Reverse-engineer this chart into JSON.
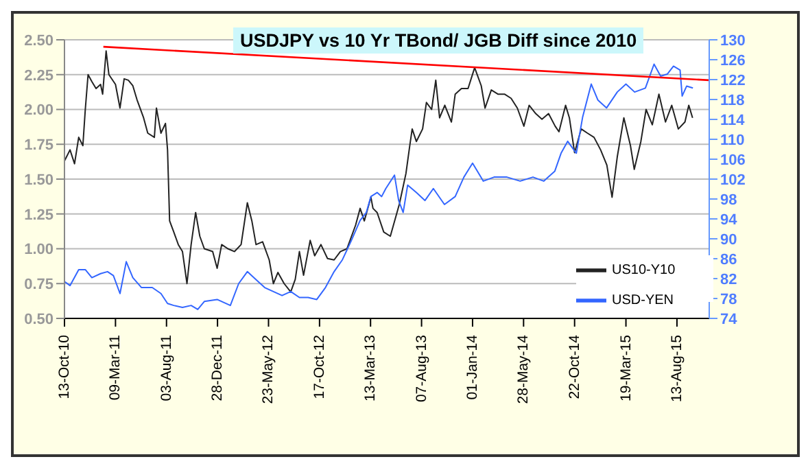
{
  "chart_data": {
    "type": "line",
    "title": "USDJPY vs 10 Yr TBond/ JGB Diff since 2010",
    "xlim": [
      "2010-10-13",
      "2015-11-14"
    ],
    "xticks": [
      {
        "value": "2010-10-13",
        "label": "13-Oct-10"
      },
      {
        "value": "2011-03-09",
        "label": "09-Mar-11"
      },
      {
        "value": "2011-08-03",
        "label": "03-Aug-11"
      },
      {
        "value": "2011-12-28",
        "label": "28-Dec-11"
      },
      {
        "value": "2012-05-23",
        "label": "23-May-12"
      },
      {
        "value": "2012-10-17",
        "label": "17-Oct-12"
      },
      {
        "value": "2013-03-13",
        "label": "13-Mar-13"
      },
      {
        "value": "2013-08-07",
        "label": "07-Aug-13"
      },
      {
        "value": "2014-01-01",
        "label": "01-Jan-14"
      },
      {
        "value": "2014-05-28",
        "label": "28-May-14"
      },
      {
        "value": "2014-10-22",
        "label": "22-Oct-14"
      },
      {
        "value": "2015-03-19",
        "label": "19-Mar-15"
      },
      {
        "value": "2015-08-13",
        "label": "13-Aug-15"
      }
    ],
    "ylim": [
      0.5,
      2.5
    ],
    "yticks": [
      {
        "value": 0.5,
        "label": "0.50"
      },
      {
        "value": 0.75,
        "label": "0.75"
      },
      {
        "value": 1,
        "label": "1.00"
      },
      {
        "value": 1.25,
        "label": "1.25"
      },
      {
        "value": 1.5,
        "label": "1.50"
      },
      {
        "value": 1.75,
        "label": "1.75"
      },
      {
        "value": 2,
        "label": "2.00"
      },
      {
        "value": 2.25,
        "label": "2.25"
      },
      {
        "value": 2.5,
        "label": "2.50"
      }
    ],
    "y2lim": [
      74,
      130
    ],
    "y2ticks": [
      74,
      78,
      82,
      86,
      90,
      94,
      98,
      102,
      106,
      110,
      114,
      118,
      122,
      126,
      130
    ],
    "grid": "y",
    "legend": "bottom right",
    "marker": "none",
    "line_style": "solid",
    "series": [
      {
        "name": "US10-Y10",
        "color": "#222222",
        "x": [
          "2010-10-13",
          "2010-10-29",
          "2010-11-11",
          "2010-11-23",
          "2010-12-05",
          "2010-12-12",
          "2010-12-20",
          "2010-12-31",
          "2011-01-12",
          "2011-01-25",
          "2011-01-31",
          "2011-02-10",
          "2011-02-18",
          "2011-03-09",
          "2011-03-22",
          "2011-04-03",
          "2011-04-15",
          "2011-04-28",
          "2011-05-10",
          "2011-05-29",
          "2011-06-10",
          "2011-06-29",
          "2011-07-05",
          "2011-07-18",
          "2011-07-31",
          "2011-08-06",
          "2011-08-12",
          "2011-08-24",
          "2011-09-06",
          "2011-09-18",
          "2011-10-01",
          "2011-10-13",
          "2011-10-26",
          "2011-11-07",
          "2011-11-20",
          "2011-12-14",
          "2011-12-27",
          "2012-01-09",
          "2012-01-27",
          "2012-02-15",
          "2012-03-05",
          "2012-03-23",
          "2012-04-05",
          "2012-04-17",
          "2012-05-06",
          "2012-05-25",
          "2012-06-06",
          "2012-06-19",
          "2012-07-07",
          "2012-07-26",
          "2012-08-08",
          "2012-08-20",
          "2012-09-01",
          "2012-09-20",
          "2012-10-03",
          "2012-10-21",
          "2012-11-09",
          "2012-11-28",
          "2012-12-16",
          "2013-01-04",
          "2013-01-29",
          "2013-02-11",
          "2013-02-23",
          "2013-03-14",
          "2013-03-20",
          "2013-04-01",
          "2013-04-20",
          "2013-05-09",
          "2013-06-04",
          "2013-06-23",
          "2013-07-04",
          "2013-07-11",
          "2013-07-23",
          "2013-08-10",
          "2013-08-21",
          "2013-09-05",
          "2013-09-17",
          "2013-09-28",
          "2013-10-13",
          "2013-11-01",
          "2013-11-12",
          "2013-11-30",
          "2013-12-19",
          "2014-01-07",
          "2014-01-26",
          "2014-02-06",
          "2014-02-24",
          "2014-03-15",
          "2014-04-03",
          "2014-04-22",
          "2014-05-10",
          "2014-05-29",
          "2014-06-13",
          "2014-07-02",
          "2014-07-20",
          "2014-08-08",
          "2014-08-27",
          "2014-09-07",
          "2014-09-26",
          "2014-10-07",
          "2014-10-22",
          "2014-11-10",
          "2014-11-28",
          "2014-12-17",
          "2015-01-05",
          "2015-01-23",
          "2015-02-07",
          "2015-02-22",
          "2015-03-13",
          "2015-04-01",
          "2015-04-12",
          "2015-05-01",
          "2015-05-16",
          "2015-06-03",
          "2015-06-22",
          "2015-07-11",
          "2015-07-29",
          "2015-08-17",
          "2015-09-05",
          "2015-09-16",
          "2015-09-27"
        ],
        "values": [
          1.63,
          1.71,
          1.61,
          1.8,
          1.74,
          2.0,
          2.25,
          2.2,
          2.15,
          2.18,
          2.11,
          2.42,
          2.25,
          2.18,
          2.01,
          2.22,
          2.21,
          2.17,
          2.07,
          1.94,
          1.83,
          1.8,
          2.01,
          1.83,
          1.9,
          1.71,
          1.2,
          1.12,
          1.03,
          0.98,
          0.75,
          1.03,
          1.26,
          1.09,
          1.0,
          0.98,
          0.86,
          1.03,
          1.0,
          0.98,
          1.03,
          1.33,
          1.2,
          1.03,
          1.05,
          0.92,
          0.75,
          0.83,
          0.75,
          0.69,
          0.78,
          0.98,
          0.81,
          1.06,
          0.95,
          1.03,
          0.93,
          0.92,
          0.98,
          1.0,
          1.17,
          1.29,
          1.2,
          1.37,
          1.29,
          1.26,
          1.12,
          1.09,
          1.32,
          1.54,
          1.74,
          1.86,
          1.77,
          1.86,
          2.05,
          2.0,
          2.21,
          1.94,
          2.03,
          1.91,
          2.11,
          2.15,
          2.15,
          2.3,
          2.17,
          2.01,
          2.14,
          2.11,
          2.11,
          2.08,
          2.01,
          1.88,
          2.03,
          1.97,
          1.93,
          1.97,
          1.88,
          1.84,
          2.03,
          1.94,
          1.69,
          1.86,
          1.83,
          1.8,
          1.71,
          1.6,
          1.37,
          1.66,
          1.94,
          1.74,
          1.57,
          1.77,
          2.0,
          1.89,
          2.11,
          1.91,
          2.03,
          1.86,
          1.91,
          2.03,
          1.94
        ]
      },
      {
        "name": "USD-YEN",
        "color": "#3366ff",
        "axis": "y2",
        "x": [
          "2010-10-13",
          "2010-10-29",
          "2010-11-23",
          "2010-12-12",
          "2010-12-31",
          "2011-01-25",
          "2011-02-14",
          "2011-03-03",
          "2011-03-22",
          "2011-04-09",
          "2011-04-28",
          "2011-05-23",
          "2011-06-23",
          "2011-07-18",
          "2011-08-06",
          "2011-08-24",
          "2011-09-18",
          "2011-10-13",
          "2011-11-01",
          "2011-11-20",
          "2011-12-27",
          "2012-02-03",
          "2012-02-27",
          "2012-03-23",
          "2012-04-17",
          "2012-05-12",
          "2012-06-06",
          "2012-07-01",
          "2012-07-26",
          "2012-08-20",
          "2012-09-14",
          "2012-10-09",
          "2012-11-03",
          "2012-11-28",
          "2012-12-22",
          "2013-01-17",
          "2013-02-11",
          "2013-03-01",
          "2013-03-14",
          "2013-04-01",
          "2013-04-14",
          "2013-04-26",
          "2013-05-21",
          "2013-06-02",
          "2013-06-15",
          "2013-06-28",
          "2013-07-23",
          "2013-08-17",
          "2013-09-10",
          "2013-10-12",
          "2013-11-12",
          "2013-12-07",
          "2014-01-01",
          "2014-02-01",
          "2014-03-04",
          "2014-04-10",
          "2014-05-18",
          "2014-06-24",
          "2014-07-25",
          "2014-08-26",
          "2014-09-13",
          "2014-10-02",
          "2014-10-27",
          "2014-11-14",
          "2014-12-09",
          "2014-12-28",
          "2015-01-22",
          "2015-02-22",
          "2015-03-19",
          "2015-04-13",
          "2015-05-14",
          "2015-06-08",
          "2015-06-27",
          "2015-07-16",
          "2015-08-03",
          "2015-08-22",
          "2015-08-28",
          "2015-09-10",
          "2015-09-28"
        ],
        "values": [
          81.4,
          80.6,
          83.8,
          83.8,
          82.2,
          83.0,
          83.4,
          82.6,
          79.0,
          85.4,
          82.2,
          80.2,
          80.2,
          79.0,
          77.0,
          76.6,
          76.2,
          76.6,
          75.8,
          77.4,
          77.8,
          76.6,
          81.0,
          83.4,
          81.8,
          80.2,
          79.4,
          78.6,
          79.4,
          78.2,
          78.2,
          77.8,
          80.2,
          83.4,
          85.8,
          89.7,
          93.7,
          95.3,
          98.5,
          99.3,
          98.5,
          100.1,
          102.8,
          97.7,
          95.3,
          100.8,
          99.3,
          97.7,
          100.1,
          96.9,
          98.5,
          102.4,
          105.2,
          101.6,
          102.4,
          102.4,
          101.6,
          102.4,
          101.6,
          103.6,
          107.2,
          109.6,
          107.2,
          114.4,
          121.1,
          117.9,
          116.3,
          119.5,
          121.1,
          119.5,
          120.3,
          125.1,
          122.7,
          123.1,
          124.7,
          123.9,
          118.7,
          120.7,
          120.3
        ]
      },
      {
        "color": "#ff0000",
        "x": [
          "2011-02-02",
          "2015-11-14"
        ],
        "values": [
          2.45,
          2.21
        ]
      }
    ]
  }
}
